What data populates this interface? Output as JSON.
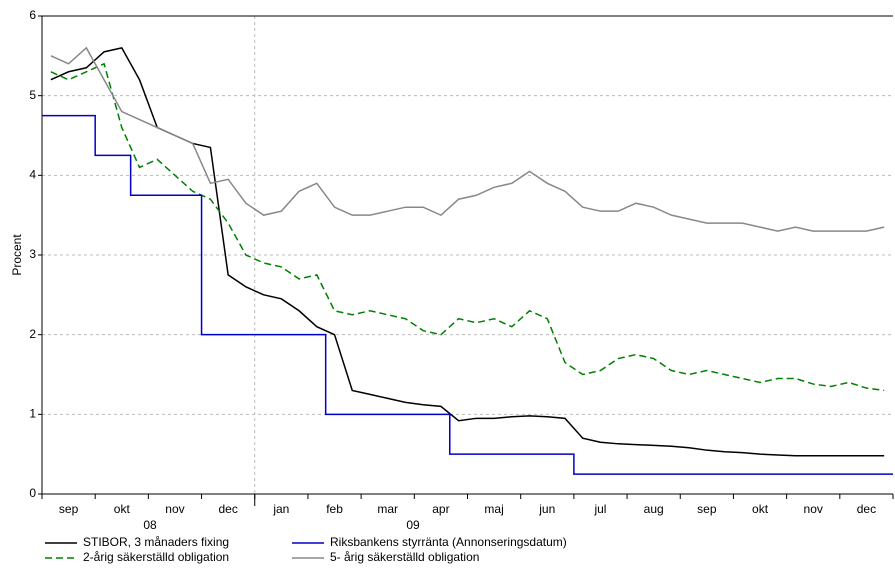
{
  "chart_data": {
    "type": "line",
    "ylabel": "Procent",
    "categories": [
      null,
      "sep",
      null,
      null,
      "okt",
      null,
      null,
      "nov",
      null,
      null,
      "dec",
      null,
      null,
      "jan",
      null,
      null,
      "feb",
      null,
      null,
      "mar",
      null,
      null,
      "apr",
      null,
      null,
      "maj",
      null,
      null,
      "jun",
      null,
      null,
      "jul",
      null,
      null,
      "aug",
      null,
      null,
      "sep",
      null,
      null,
      "okt",
      null,
      null,
      "nov",
      null,
      null,
      "dec",
      null
    ],
    "year_labels": [
      "08",
      "09"
    ],
    "ylim": [
      0,
      6
    ],
    "yticks": [
      0,
      1,
      2,
      3,
      4,
      5,
      6
    ],
    "grid": true,
    "legend": "bottom",
    "series": [
      {
        "name": "STIBOR, 3 månaders fixing",
        "color": "#000000",
        "line_style": "solid",
        "values": [
          5.2,
          5.3,
          5.35,
          5.55,
          5.6,
          5.2,
          4.6,
          4.5,
          4.4,
          4.35,
          2.75,
          2.6,
          2.5,
          2.45,
          2.3,
          2.1,
          2.0,
          1.3,
          1.25,
          1.2,
          1.15,
          1.12,
          1.1,
          0.92,
          0.95,
          0.95,
          0.97,
          0.98,
          0.97,
          0.95,
          0.7,
          0.65,
          0.63,
          0.62,
          0.61,
          0.6,
          0.58,
          0.55,
          0.53,
          0.52,
          0.5,
          0.49,
          0.48,
          0.48,
          0.48,
          0.48,
          0.48,
          0.48
        ]
      },
      {
        "name": "2-årig säkerställd obligation",
        "color": "#008000",
        "line_style": "dashed",
        "values": [
          5.3,
          5.2,
          5.3,
          5.4,
          4.6,
          4.1,
          4.2,
          4.0,
          3.8,
          3.7,
          3.4,
          3.0,
          2.9,
          2.85,
          2.7,
          2.75,
          2.3,
          2.25,
          2.3,
          2.25,
          2.2,
          2.05,
          2.0,
          2.2,
          2.15,
          2.2,
          2.1,
          2.3,
          2.2,
          1.65,
          1.5,
          1.55,
          1.7,
          1.75,
          1.7,
          1.55,
          1.5,
          1.55,
          1.5,
          1.45,
          1.4,
          1.45,
          1.45,
          1.38,
          1.35,
          1.4,
          1.33,
          1.3
        ]
      },
      {
        "name": "Riksbankens styrränta (Annonseringsdatum)",
        "color": "#0000cc",
        "line_style": "step",
        "values": [
          4.75,
          4.75,
          4.75,
          4.25,
          4.25,
          3.75,
          3.75,
          3.75,
          3.75,
          2,
          2,
          2,
          2,
          2,
          2,
          2,
          1,
          1,
          1,
          1,
          1,
          1,
          1,
          0.5,
          0.5,
          0.5,
          0.5,
          0.5,
          0.5,
          0.5,
          0.25,
          0.25,
          0.25,
          0.25,
          0.25,
          0.25,
          0.25,
          0.25,
          0.25,
          0.25,
          0.25,
          0.25,
          0.25,
          0.25,
          0.25,
          0.25,
          0.25,
          0.25
        ]
      },
      {
        "name": "5- årig säkerställd obligation",
        "color": "#888888",
        "line_style": "solid",
        "values": [
          5.5,
          5.4,
          5.6,
          5.2,
          4.8,
          4.7,
          4.6,
          4.5,
          4.4,
          3.9,
          3.95,
          3.65,
          3.5,
          3.55,
          3.8,
          3.9,
          3.6,
          3.5,
          3.5,
          3.55,
          3.6,
          3.6,
          3.5,
          3.7,
          3.75,
          3.85,
          3.9,
          4.05,
          3.9,
          3.8,
          3.6,
          3.55,
          3.55,
          3.65,
          3.6,
          3.5,
          3.45,
          3.4,
          3.4,
          3.4,
          3.35,
          3.3,
          3.35,
          3.3,
          3.3,
          3.3,
          3.3,
          3.35
        ]
      }
    ]
  }
}
